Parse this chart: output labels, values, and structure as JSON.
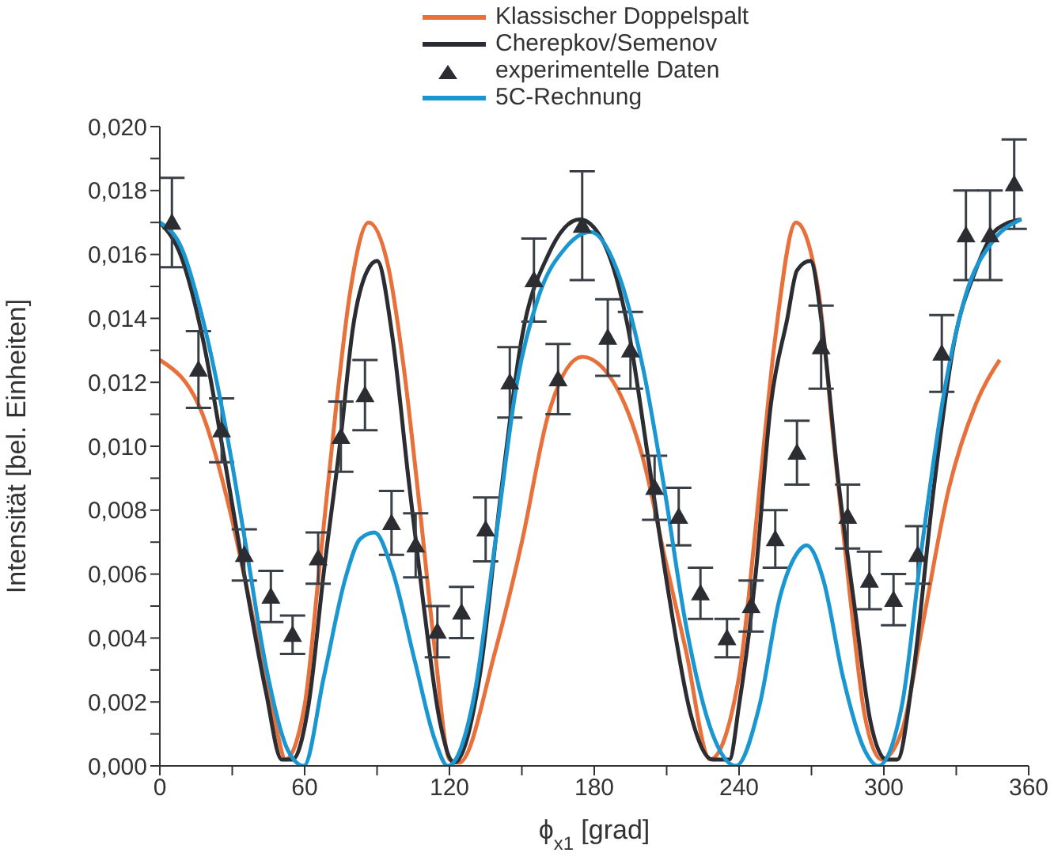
{
  "chart_data": {
    "type": "line",
    "xlabel": "ϕ$_{x1}$ [grad]",
    "ylabel": "Intensität [bel. Einheiten]",
    "legend": "top",
    "grid": false,
    "xlim": [
      0,
      360
    ],
    "xticks": [
      0,
      {
        "value": 30,
        "label": null
      },
      60,
      {
        "value": 90,
        "label": null
      },
      120,
      {
        "value": 150,
        "label": null
      },
      180,
      {
        "value": 210,
        "label": null
      },
      240,
      {
        "value": 270,
        "label": null
      },
      300,
      {
        "value": 330,
        "label": null
      },
      360
    ],
    "ylim": [
      0,
      0.02
    ],
    "yticks": [
      {
        "value": 0,
        "label": "0,000"
      },
      {
        "value": 0.001,
        "label": null
      },
      {
        "value": 0.002,
        "label": "0,002"
      },
      {
        "value": 0.003,
        "label": null
      },
      {
        "value": 0.004,
        "label": "0,004"
      },
      {
        "value": 0.005,
        "label": null
      },
      {
        "value": 0.006,
        "label": "0,006"
      },
      {
        "value": 0.007,
        "label": null
      },
      {
        "value": 0.008,
        "label": "0,008"
      },
      {
        "value": 0.009,
        "label": null
      },
      {
        "value": 0.01,
        "label": "0,010"
      },
      {
        "value": 0.011,
        "label": null
      },
      {
        "value": 0.012,
        "label": "0,012"
      },
      {
        "value": 0.013,
        "label": null
      },
      {
        "value": 0.014,
        "label": "0,014"
      },
      {
        "value": 0.015,
        "label": null
      },
      {
        "value": 0.016,
        "label": "0,016"
      },
      {
        "value": 0.017,
        "label": null
      },
      {
        "value": 0.018,
        "label": "0,018"
      },
      {
        "value": 0.019,
        "label": null
      },
      {
        "value": 0.02,
        "label": "0,020"
      }
    ],
    "series": [
      {
        "name": "Klassischer Doppelspalt",
        "color": "#e8703a",
        "x": [
          0,
          17.7,
          29,
          35.4,
          42,
          48.5,
          52,
          60,
          66,
          73,
          79,
          86.5,
          94.4,
          101,
          107.5,
          114,
          120,
          124,
          139,
          150,
          161,
          175,
          189.5,
          200.6,
          209,
          218,
          228,
          240,
          244,
          248.5,
          255,
          263.6,
          272.8,
          279,
          286,
          292,
          299,
          307.5,
          316,
          327,
          338,
          348
        ],
        "values": [
          0.0127,
          0.011,
          0.008,
          0.0058,
          0.0034,
          0.0011,
          0.0002,
          0.0019,
          0.0061,
          0.0112,
          0.0149,
          0.017,
          0.0157,
          0.0125,
          0.0082,
          0.0036,
          0.0002,
          0.0001,
          0.0036,
          0.007,
          0.011,
          0.0128,
          0.0118,
          0.0095,
          0.0066,
          0.0036,
          0.0002,
          0.0028,
          0.0053,
          0.0087,
          0.0134,
          0.017,
          0.0149,
          0.0103,
          0.0053,
          0.0016,
          0.0002,
          0.0011,
          0.0044,
          0.0087,
          0.0113,
          0.0127
        ]
      },
      {
        "name": "Cherepkov/Semenov",
        "color": "#2b2d33",
        "x": [
          0,
          9,
          17.7,
          27,
          35.4,
          44,
          50.5,
          55,
          61.6,
          68,
          75,
          80,
          86,
          90,
          96.4,
          103,
          109.5,
          116,
          122,
          132.5,
          141.6,
          150,
          161,
          174,
          183,
          194,
          202.6,
          211,
          220,
          229,
          236,
          240,
          247,
          253,
          260,
          264,
          269.5,
          275,
          281,
          288,
          294.4,
          301,
          305.6,
          312,
          320.7,
          329,
          338,
          347,
          357
        ],
        "values": [
          0.017,
          0.0159,
          0.0134,
          0.0095,
          0.0058,
          0.0023,
          0.0002,
          0.0002,
          0.0019,
          0.0061,
          0.0103,
          0.0137,
          0.0155,
          0.0158,
          0.0134,
          0.009,
          0.0049,
          0.0014,
          0.0001,
          0.0028,
          0.0087,
          0.0134,
          0.016,
          0.0171,
          0.0165,
          0.0137,
          0.0095,
          0.0053,
          0.0016,
          0.0002,
          0.0002,
          0.0019,
          0.0061,
          0.0112,
          0.014,
          0.0155,
          0.0158,
          0.0134,
          0.009,
          0.0049,
          0.0014,
          0.0002,
          0.0002,
          0.0028,
          0.0087,
          0.0132,
          0.0155,
          0.0168,
          0.0171
        ]
      },
      {
        "name": "experimentelle Daten",
        "type": "scatter",
        "marker": "triangle",
        "color": "#2b2d33",
        "x": [
          5,
          16,
          25.6,
          35,
          46,
          55,
          65.6,
          75,
          85,
          96,
          106,
          115,
          125,
          135,
          145,
          155,
          165,
          175,
          185.6,
          195,
          205,
          215,
          224,
          235,
          245,
          255,
          264,
          274,
          285,
          294,
          304,
          314,
          324,
          334,
          344,
          354
        ],
        "values": [
          0.017,
          0.0124,
          0.0105,
          0.0066,
          0.0053,
          0.0041,
          0.0065,
          0.0103,
          0.0116,
          0.0076,
          0.0069,
          0.0042,
          0.0048,
          0.0074,
          0.012,
          0.0152,
          0.0121,
          0.0169,
          0.0134,
          0.013,
          0.0087,
          0.0078,
          0.0054,
          0.004,
          0.005,
          0.0071,
          0.0098,
          0.0131,
          0.0078,
          0.0058,
          0.0052,
          0.0066,
          0.0129,
          0.0166,
          0.0166,
          0.0182
        ],
        "errors": [
          0.0014,
          0.0012,
          0.001,
          0.0008,
          0.0008,
          0.0006,
          0.0008,
          0.0011,
          0.0011,
          0.001,
          0.001,
          0.0008,
          0.0008,
          0.001,
          0.0011,
          0.0013,
          0.0011,
          0.0017,
          0.0012,
          0.0012,
          0.001,
          0.0009,
          0.0008,
          0.0006,
          0.0008,
          0.0009,
          0.001,
          0.0013,
          0.001,
          0.0009,
          0.0008,
          0.0009,
          0.0012,
          0.0014,
          0.0014,
          0.0014
        ]
      },
      {
        "name": "5C-Rechnung",
        "color": "#1a96d0",
        "x": [
          0,
          9,
          17.7,
          27,
          35.4,
          44,
          53,
          59.7,
          68,
          77,
          83,
          89,
          96.4,
          105.6,
          114,
          119.3,
          130.5,
          139,
          148,
          157,
          168,
          178.4,
          189.5,
          200.6,
          209,
          218,
          229,
          238.7,
          248.5,
          257,
          263.6,
          268,
          275,
          283,
          292,
          297.7,
          307.5,
          316,
          325,
          333.8,
          345,
          357
        ],
        "values": [
          0.017,
          0.0162,
          0.014,
          0.0107,
          0.007,
          0.0031,
          0.0005,
          0,
          0.0028,
          0.0059,
          0.0071,
          0.0073,
          0.0061,
          0.0033,
          0.0008,
          0,
          0.0023,
          0.007,
          0.012,
          0.0147,
          0.0162,
          0.0167,
          0.0155,
          0.0123,
          0.0087,
          0.0044,
          0.001,
          0,
          0.0019,
          0.0053,
          0.0066,
          0.0069,
          0.0058,
          0.0028,
          0.0005,
          0,
          0.0019,
          0.007,
          0.0117,
          0.0147,
          0.0164,
          0.0171
        ]
      }
    ]
  }
}
